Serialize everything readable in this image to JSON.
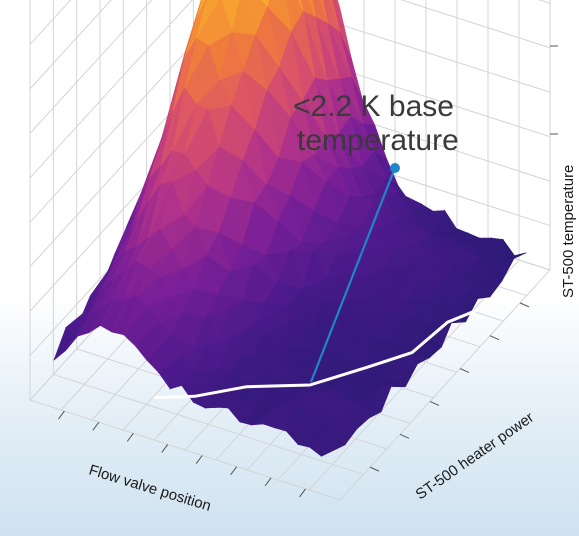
{
  "chart_data": {
    "type": "surface",
    "title": "",
    "axes": {
      "x": {
        "label": "Flow valve position",
        "ticks": 8
      },
      "y": {
        "label": "ST-500 heater power",
        "ticks": 6
      },
      "z": {
        "label": "ST-500 temperature",
        "ticks": 4
      }
    },
    "grid": true,
    "colormap": [
      "#1d1a6b",
      "#4b1a8c",
      "#7a1f97",
      "#b0328a",
      "#d9516a",
      "#f07c3c",
      "#f9b42a",
      "#f4e82a"
    ],
    "annotation": {
      "text_line1": "<2.2 K base",
      "text_line2": "temperature",
      "line_color": "#1f86c8"
    },
    "contour": {
      "label": "",
      "color": "#ffffff"
    }
  }
}
